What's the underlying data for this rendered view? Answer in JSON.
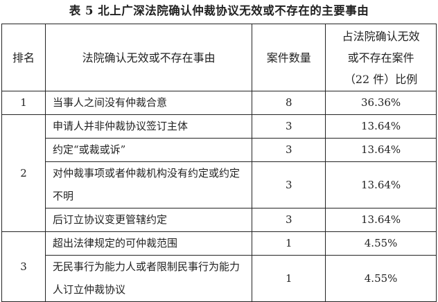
{
  "title": "表 5   北上广深法院确认仲裁协议无效或不存在的主要事由",
  "headers": {
    "rank": "排名",
    "reason": "法院确认无效或不存在事由",
    "count": "案件数量",
    "ratio_l1": "占法院确认无效",
    "ratio_l2": "或不存在案件",
    "ratio_l3": "（22 件）比例"
  },
  "groups": [
    {
      "rank": "1",
      "rows": [
        {
          "reason": "当事人之间没有仲裁合意",
          "count": "8",
          "ratio": "36.36%"
        }
      ]
    },
    {
      "rank": "2",
      "rows": [
        {
          "reason": "申请人并非仲裁协议签订主体",
          "count": "3",
          "ratio": "13.64%"
        },
        {
          "reason": "约定“或裁或诉”",
          "count": "3",
          "ratio": "13.64%"
        },
        {
          "reason": "对仲裁事项或者仲裁机构没有约定或约定不明",
          "count": "3",
          "ratio": "13.64%"
        },
        {
          "reason": "后订立协议变更管辖约定",
          "count": "3",
          "ratio": "13.64%"
        }
      ]
    },
    {
      "rank": "3",
      "rows": [
        {
          "reason": "超出法律规定的可仲裁范围",
          "count": "1",
          "ratio": "4.55%"
        },
        {
          "reason": "无民事行为能力人或者限制民事行为能力人订立仲裁协议",
          "count": "1",
          "ratio": "4.55%"
        }
      ]
    }
  ]
}
